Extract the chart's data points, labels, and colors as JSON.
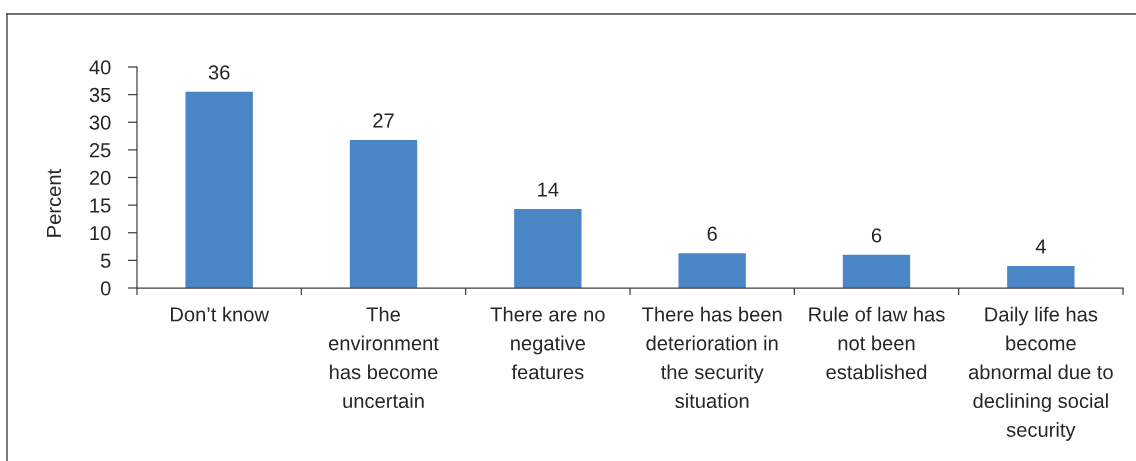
{
  "chart_data": {
    "type": "bar",
    "ylabel": "Percent",
    "categories": [
      "Don’t know",
      "The environment has become uncertain",
      "There are no negative features",
      "There has been deterioration in the security situation",
      "Rule of law has not been established",
      "Daily life has become abnormal due to declining social security"
    ],
    "values": [
      35.5,
      26.8,
      14.3,
      6.3,
      6.0,
      4.0
    ],
    "value_labels": [
      "36",
      "27",
      "14",
      "6",
      "6",
      "4"
    ],
    "color": "#4a86c5",
    "ylim": [
      0,
      40
    ],
    "yticks": [
      0,
      5,
      10,
      15,
      20,
      25,
      30,
      35,
      40
    ]
  }
}
